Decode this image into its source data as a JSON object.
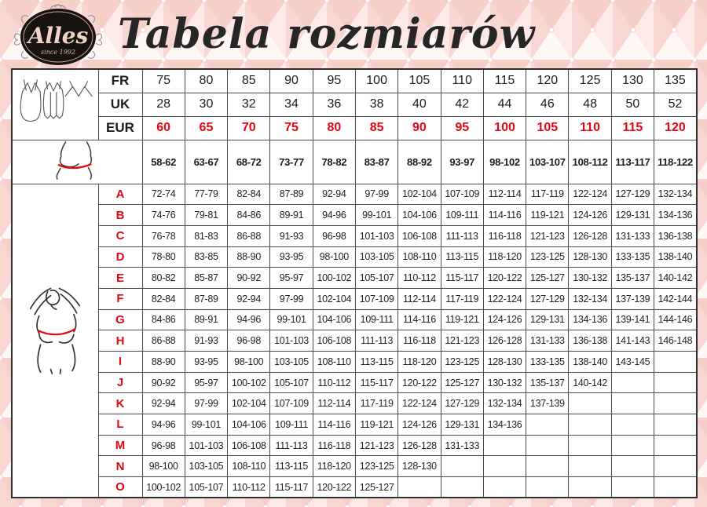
{
  "brand": {
    "name": "Alles",
    "tagline": "since 1992"
  },
  "title": "Tabela rozmiarów",
  "colors": {
    "accent_red": "#e30613",
    "cell_bg": "#ffffff",
    "border": "#4b4b4d",
    "background_pink": "#fbe7e3"
  },
  "icons": {
    "lingerie_set": "lingerie-set-icon",
    "underbust": "underbust-measure-icon",
    "bust": "bust-measure-icon"
  },
  "size_table": {
    "band_rows": [
      {
        "label": "FR",
        "values": [
          "75",
          "80",
          "85",
          "90",
          "95",
          "100",
          "105",
          "110",
          "115",
          "120",
          "125",
          "130",
          "135"
        ]
      },
      {
        "label": "UK",
        "values": [
          "28",
          "30",
          "32",
          "34",
          "36",
          "38",
          "40",
          "42",
          "44",
          "46",
          "48",
          "50",
          "52"
        ]
      },
      {
        "label": "EUR",
        "values": [
          "60",
          "65",
          "70",
          "75",
          "80",
          "85",
          "90",
          "95",
          "100",
          "105",
          "110",
          "115",
          "120"
        ]
      }
    ],
    "underbust_row": {
      "values": [
        "58-62",
        "63-67",
        "68-72",
        "73-77",
        "78-82",
        "83-87",
        "88-92",
        "93-97",
        "98-102",
        "103-107",
        "108-112",
        "113-117",
        "118-122"
      ]
    },
    "cup_rows": [
      {
        "label": "A",
        "values": [
          "72-74",
          "77-79",
          "82-84",
          "87-89",
          "92-94",
          "97-99",
          "102-104",
          "107-109",
          "112-114",
          "117-119",
          "122-124",
          "127-129",
          "132-134"
        ]
      },
      {
        "label": "B",
        "values": [
          "74-76",
          "79-81",
          "84-86",
          "89-91",
          "94-96",
          "99-101",
          "104-106",
          "109-111",
          "114-116",
          "119-121",
          "124-126",
          "129-131",
          "134-136"
        ]
      },
      {
        "label": "C",
        "values": [
          "76-78",
          "81-83",
          "86-88",
          "91-93",
          "96-98",
          "101-103",
          "106-108",
          "111-113",
          "116-118",
          "121-123",
          "126-128",
          "131-133",
          "136-138"
        ]
      },
      {
        "label": "D",
        "values": [
          "78-80",
          "83-85",
          "88-90",
          "93-95",
          "98-100",
          "103-105",
          "108-110",
          "113-115",
          "118-120",
          "123-125",
          "128-130",
          "133-135",
          "138-140"
        ]
      },
      {
        "label": "E",
        "values": [
          "80-82",
          "85-87",
          "90-92",
          "95-97",
          "100-102",
          "105-107",
          "110-112",
          "115-117",
          "120-122",
          "125-127",
          "130-132",
          "135-137",
          "140-142"
        ]
      },
      {
        "label": "F",
        "values": [
          "82-84",
          "87-89",
          "92-94",
          "97-99",
          "102-104",
          "107-109",
          "112-114",
          "117-119",
          "122-124",
          "127-129",
          "132-134",
          "137-139",
          "142-144"
        ]
      },
      {
        "label": "G",
        "values": [
          "84-86",
          "89-91",
          "94-96",
          "99-101",
          "104-106",
          "109-111",
          "114-116",
          "119-121",
          "124-126",
          "129-131",
          "134-136",
          "139-141",
          "144-146"
        ]
      },
      {
        "label": "H",
        "values": [
          "86-88",
          "91-93",
          "96-98",
          "101-103",
          "106-108",
          "111-113",
          "116-118",
          "121-123",
          "126-128",
          "131-133",
          "136-138",
          "141-143",
          "146-148"
        ]
      },
      {
        "label": "I",
        "values": [
          "88-90",
          "93-95",
          "98-100",
          "103-105",
          "108-110",
          "113-115",
          "118-120",
          "123-125",
          "128-130",
          "133-135",
          "138-140",
          "143-145",
          ""
        ]
      },
      {
        "label": "J",
        "values": [
          "90-92",
          "95-97",
          "100-102",
          "105-107",
          "110-112",
          "115-117",
          "120-122",
          "125-127",
          "130-132",
          "135-137",
          "140-142",
          "",
          ""
        ]
      },
      {
        "label": "K",
        "values": [
          "92-94",
          "97-99",
          "102-104",
          "107-109",
          "112-114",
          "117-119",
          "122-124",
          "127-129",
          "132-134",
          "137-139",
          "",
          "",
          ""
        ]
      },
      {
        "label": "L",
        "values": [
          "94-96",
          "99-101",
          "104-106",
          "109-111",
          "114-116",
          "119-121",
          "124-126",
          "129-131",
          "134-136",
          "",
          "",
          "",
          ""
        ]
      },
      {
        "label": "M",
        "values": [
          "96-98",
          "101-103",
          "106-108",
          "111-113",
          "116-118",
          "121-123",
          "126-128",
          "131-133",
          "",
          "",
          "",
          "",
          ""
        ]
      },
      {
        "label": "N",
        "values": [
          "98-100",
          "103-105",
          "108-110",
          "113-115",
          "118-120",
          "123-125",
          "128-130",
          "",
          "",
          "",
          "",
          "",
          ""
        ]
      },
      {
        "label": "O",
        "values": [
          "100-102",
          "105-107",
          "110-112",
          "115-117",
          "120-122",
          "125-127",
          "",
          "",
          "",
          "",
          "",
          "",
          ""
        ]
      }
    ]
  }
}
